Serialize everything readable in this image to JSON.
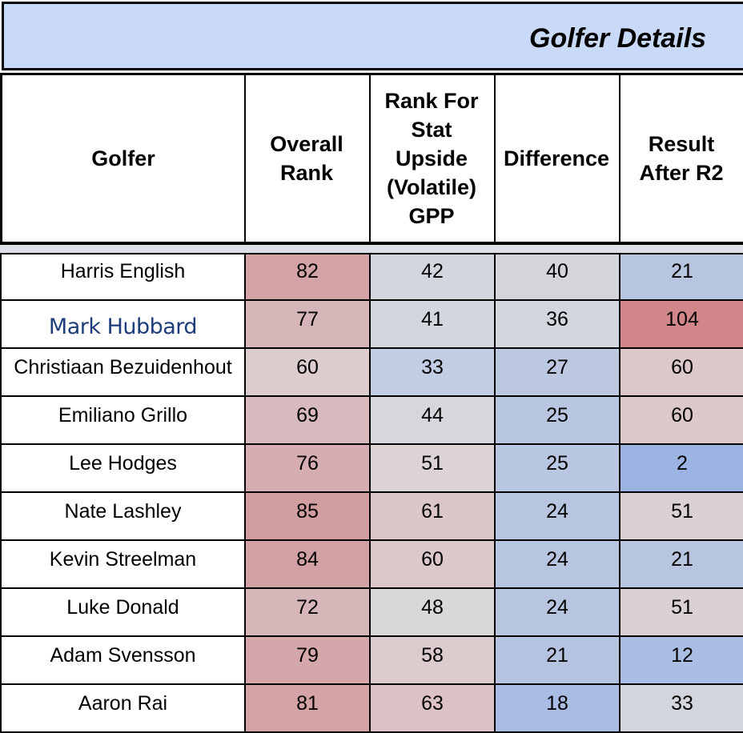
{
  "title": "Golfer Details",
  "headers": {
    "golfer": "Golfer",
    "overall_rank": "Overall\nRank",
    "rank_stat": "Rank For\nStat\nUpside\n(Volatile)\nGPP",
    "difference": "Difference",
    "result": "Result\nAfter R2"
  },
  "rows": [
    {
      "golfer": "Harris English",
      "overall_rank": "82",
      "rank_stat": "42",
      "difference": "40",
      "result": "21",
      "colors": [
        "#d3a3a5",
        "#d2d6de",
        "#d4d5db",
        "#b7c5e0"
      ]
    },
    {
      "golfer": "Mark Hubbard",
      "overall_rank": "77",
      "rank_stat": "41",
      "difference": "36",
      "result": "104",
      "colors": [
        "#d5b5b8",
        "#d1d6df",
        "#d2d6de",
        "#d1878a"
      ]
    },
    {
      "golfer": "Christiaan Bezuidenhout",
      "overall_rank": "60",
      "rank_stat": "33",
      "difference": "27",
      "result": "60",
      "colors": [
        "#dccccd",
        "#c0cde2",
        "#bcc7e0",
        "#dcc8c9"
      ]
    },
    {
      "golfer": "Emiliano Grillo",
      "overall_rank": "69",
      "rank_stat": "44",
      "difference": "25",
      "result": "60",
      "colors": [
        "#d8b9bd",
        "#d6d7dc",
        "#b9c6e1",
        "#dcc8c9"
      ]
    },
    {
      "golfer": "Lee Hodges",
      "overall_rank": "76",
      "rank_stat": "51",
      "difference": "25",
      "result": "2",
      "colors": [
        "#d6aeb1",
        "#dbd3d6",
        "#b9c6e1",
        "#9bb4e4"
      ]
    },
    {
      "golfer": "Nate Lashley",
      "overall_rank": "85",
      "rank_stat": "61",
      "difference": "24",
      "result": "51",
      "colors": [
        "#d29d9f",
        "#dcc6c8",
        "#b8c5e1",
        "#dbd0d2"
      ]
    },
    {
      "golfer": "Kevin Streelman",
      "overall_rank": "84",
      "rank_stat": "60",
      "difference": "24",
      "result": "21",
      "colors": [
        "#d2a1a3",
        "#dcc8ca",
        "#b8c5e1",
        "#b7c5e0"
      ]
    },
    {
      "golfer": "Luke Donald",
      "overall_rank": "72",
      "rank_stat": "48",
      "difference": "24",
      "result": "51",
      "colors": [
        "#d7b6b9",
        "#d9d7da",
        "#b8c5e1",
        "#dbd0d2"
      ]
    },
    {
      "golfer": "Adam Svensson",
      "overall_rank": "79",
      "rank_stat": "58",
      "difference": "21",
      "result": "12",
      "colors": [
        "#d4a8ab",
        "#dccbcd",
        "#b5c3e1",
        "#aabde2"
      ]
    },
    {
      "golfer": "Aaron Rai",
      "overall_rank": "81",
      "rank_stat": "63",
      "difference": "18",
      "result": "33",
      "colors": [
        "#d3a3a6",
        "#dcc2c4",
        "#a9bce3",
        "#d3d5dc"
      ]
    }
  ]
}
